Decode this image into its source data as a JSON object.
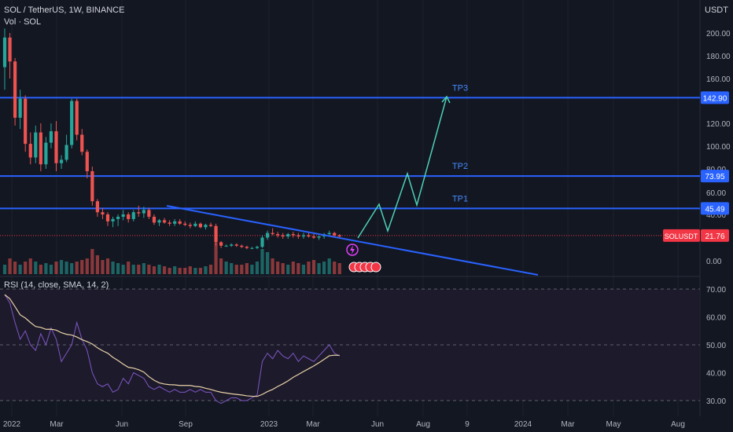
{
  "header": {
    "symbol_line": "SOL / TetherUS, 1W, BINANCE",
    "vol_label": "Vol · SOL",
    "currency": "USDT"
  },
  "colors": {
    "bg": "#131722",
    "up": "#26a69a",
    "down": "#ef5350",
    "level": "#2962ff",
    "projection": "#4dd0b8",
    "trendline": "#2962ff",
    "rsi": "#7e57c2",
    "rsi_ma": "#e8d2a6",
    "axis_text": "#b2b5be",
    "price_tag": "#f23645"
  },
  "price_axis": {
    "ticks": [
      "200.00",
      "180.00",
      "160.00",
      "120.00",
      "100.00",
      "80.00",
      "60.00",
      "40.00",
      "0.00"
    ],
    "tagged": [
      {
        "label": "142.90",
        "value": 142.9
      },
      {
        "label": "73.95",
        "value": 73.95
      },
      {
        "label": "45.49",
        "value": 45.49
      }
    ],
    "current": {
      "symbol": "SOLUSDT",
      "value_label": "21.76",
      "value": 21.76
    }
  },
  "levels": [
    {
      "name": "TP3",
      "value": 142.9
    },
    {
      "name": "TP2",
      "value": 73.95
    },
    {
      "name": "TP1",
      "value": 45.49
    }
  ],
  "rsi": {
    "label": "RSI (14, close, SMA, 14, 2)",
    "ticks": [
      "70.00",
      "60.00",
      "50.00",
      "40.00",
      "30.00"
    ]
  },
  "time_axis": [
    "2022",
    "Mar",
    "Jun",
    "Sep",
    "2023",
    "Mar",
    "Jun",
    "Aug",
    "9",
    "2024",
    "Mar",
    "May",
    "Aug"
  ],
  "chart_data": {
    "type": "candlestick",
    "title": "SOL / TetherUS, 1W, BINANCE",
    "y_unit": "USDT",
    "candles_ohlc": [
      [
        170,
        204,
        150,
        196
      ],
      [
        196,
        200,
        160,
        175
      ],
      [
        175,
        178,
        118,
        125
      ],
      [
        125,
        150,
        115,
        142
      ],
      [
        142,
        145,
        95,
        102
      ],
      [
        102,
        112,
        84,
        90
      ],
      [
        90,
        118,
        85,
        112
      ],
      [
        112,
        120,
        78,
        84
      ],
      [
        84,
        108,
        80,
        103
      ],
      [
        103,
        120,
        98,
        113
      ],
      [
        113,
        122,
        78,
        85
      ],
      [
        85,
        92,
        80,
        88
      ],
      [
        88,
        110,
        86,
        101
      ],
      [
        101,
        142,
        98,
        140
      ],
      [
        140,
        142,
        105,
        110
      ],
      [
        110,
        115,
        92,
        95
      ],
      [
        95,
        97,
        72,
        78
      ],
      [
        78,
        82,
        48,
        52
      ],
      [
        52,
        54,
        38,
        42
      ],
      [
        42,
        46,
        36,
        40
      ],
      [
        40,
        42,
        30,
        34
      ],
      [
        34,
        38,
        29,
        36
      ],
      [
        36,
        40,
        30,
        38
      ],
      [
        38,
        44,
        35,
        40
      ],
      [
        40,
        42,
        33,
        36
      ],
      [
        36,
        44,
        34,
        42
      ],
      [
        42,
        48,
        38,
        41
      ],
      [
        41,
        47,
        37,
        44
      ],
      [
        44,
        46,
        36,
        38
      ],
      [
        38,
        40,
        31,
        33
      ],
      [
        33,
        36,
        30,
        35
      ],
      [
        35,
        37,
        32,
        33
      ],
      [
        33,
        35,
        30,
        32
      ],
      [
        32,
        36,
        30,
        34
      ],
      [
        34,
        36,
        31,
        32
      ],
      [
        32,
        34,
        30,
        31
      ],
      [
        31,
        33,
        28,
        30
      ],
      [
        30,
        34,
        29,
        32
      ],
      [
        32,
        33,
        28,
        29
      ],
      [
        29,
        32,
        27,
        31
      ],
      [
        31,
        33,
        29,
        30
      ],
      [
        30,
        32,
        13,
        16
      ],
      [
        16,
        17,
        11,
        13
      ],
      [
        13,
        14,
        12,
        13
      ],
      [
        13,
        15,
        12,
        14
      ],
      [
        14,
        15,
        12,
        13
      ],
      [
        13,
        14,
        11,
        12
      ],
      [
        12,
        13,
        10,
        11
      ],
      [
        11,
        12,
        10,
        11
      ],
      [
        11,
        13,
        10,
        12
      ],
      [
        12,
        22,
        11,
        20
      ],
      [
        20,
        26,
        18,
        24
      ],
      [
        24,
        28,
        22,
        23
      ],
      [
        23,
        25,
        20,
        22
      ],
      [
        22,
        24,
        19,
        21
      ],
      [
        21,
        24,
        19,
        23
      ],
      [
        23,
        25,
        20,
        22
      ],
      [
        22,
        24,
        19,
        21
      ],
      [
        21,
        24,
        19,
        22
      ],
      [
        22,
        24,
        20,
        21
      ],
      [
        21,
        23,
        19,
        20
      ],
      [
        20,
        22,
        18,
        21
      ],
      [
        21,
        24,
        19,
        23
      ],
      [
        23,
        26,
        21,
        24
      ],
      [
        24,
        25,
        20,
        22
      ],
      [
        22,
        23,
        20,
        21
      ]
    ],
    "volume_relative": [
      0.3,
      0.5,
      0.4,
      0.3,
      0.4,
      0.5,
      0.4,
      0.3,
      0.35,
      0.3,
      0.4,
      0.45,
      0.4,
      0.35,
      0.4,
      0.45,
      0.5,
      0.8,
      0.6,
      0.45,
      0.5,
      0.4,
      0.35,
      0.3,
      0.4,
      0.3,
      0.3,
      0.35,
      0.3,
      0.25,
      0.3,
      0.25,
      0.2,
      0.25,
      0.2,
      0.2,
      0.25,
      0.2,
      0.2,
      0.25,
      0.3,
      1.0,
      0.5,
      0.4,
      0.35,
      0.3,
      0.3,
      0.35,
      0.3,
      0.4,
      0.8,
      0.7,
      0.5,
      0.4,
      0.35,
      0.3,
      0.4,
      0.35,
      0.3,
      0.4,
      0.45,
      0.35,
      0.4,
      0.5,
      0.4,
      0.35
    ],
    "projection_path": [
      [
        22,
        0
      ],
      [
        45,
        4
      ],
      [
        30,
        6
      ],
      [
        74,
        10
      ],
      [
        49,
        13
      ],
      [
        143,
        18
      ]
    ],
    "rsi_values": [
      68,
      65,
      58,
      52,
      55,
      50,
      48,
      54,
      50,
      56,
      52,
      44,
      47,
      50,
      58,
      52,
      48,
      40,
      36,
      35,
      36,
      33,
      34,
      38,
      36,
      40,
      39,
      38,
      35,
      34,
      35,
      34,
      33,
      34,
      33,
      33,
      34,
      33,
      34,
      33,
      33,
      30,
      29,
      30,
      31,
      31,
      30,
      30,
      31,
      32,
      44,
      47,
      45,
      48,
      46,
      45,
      47,
      44,
      46,
      45,
      44,
      46,
      48,
      50,
      47,
      46
    ],
    "rsi_range": [
      25,
      75
    ]
  }
}
